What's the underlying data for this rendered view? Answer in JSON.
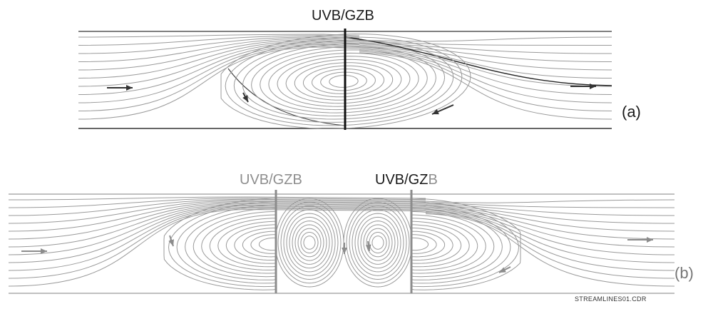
{
  "panel_a": {
    "barrier_label": "UVB/GZB",
    "panel_label": "(a)"
  },
  "panel_b": {
    "barrier_label_left": "UVB/GZB",
    "barrier_label_right_main": "UVB/GZ",
    "barrier_label_right_suffix": "B",
    "panel_label": "(b)"
  },
  "file_name": "STREAMLINES01.CDR",
  "colors": {
    "streamline": "#9a9a9a",
    "wall": "#333333",
    "barrier_a": "#111111",
    "barrier_b": "#8c8c8c",
    "arrow_a": "#333333",
    "arrow_b": "#8c8c8c"
  }
}
